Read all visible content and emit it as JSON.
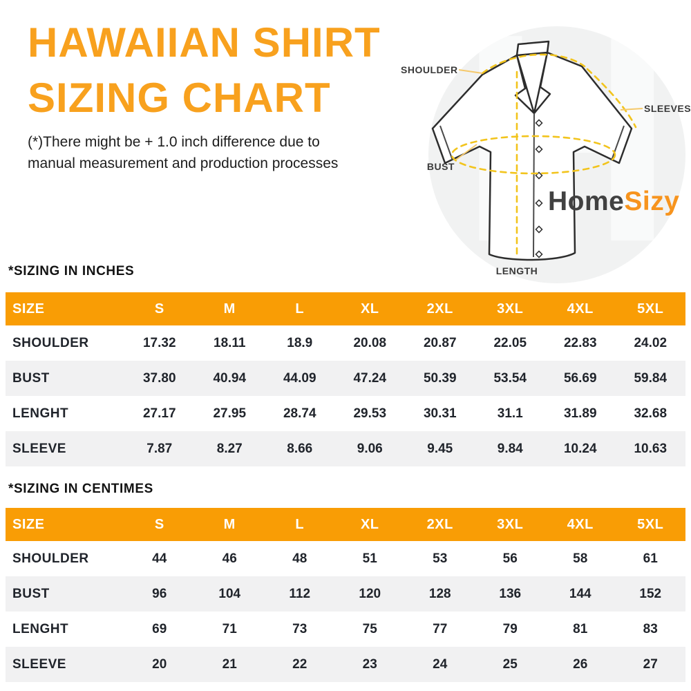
{
  "header": {
    "title_line1": "HAWAIIAN SHIRT",
    "title_line2": "SIZING CHART",
    "subtitle_line1": "(*)There might be + 1.0 inch difference due to",
    "subtitle_line2": "manual measurement and production processes"
  },
  "diagram": {
    "labels": {
      "shoulder": "SHOULDER",
      "sleeves": "SLEEVES",
      "bust": "BUST",
      "length": "LENGTH"
    },
    "logo": {
      "part1": "Home",
      "part2": "Sizy"
    },
    "watermark_letter": "H"
  },
  "colors": {
    "title_orange": "#F8A11E",
    "accent_orange": "#F99D05",
    "logo_orange": "#F7941E",
    "logo_dark": "#414141",
    "dash_yellow": "#F2C41D",
    "connector_yellow": "#F5C96B",
    "row_alt_gray": "#F1F1F2",
    "table_text": "#20242B",
    "shirt_outline": "#2D2D2D"
  },
  "tables": [
    {
      "heading": "*SIZING IN INCHES",
      "columns": [
        "SIZE",
        "S",
        "M",
        "L",
        "XL",
        "2XL",
        "3XL",
        "4XL",
        "5XL"
      ],
      "rows": [
        {
          "label": "SHOULDER",
          "values": [
            "17.32",
            "18.11",
            "18.9",
            "20.08",
            "20.87",
            "22.05",
            "22.83",
            "24.02"
          ]
        },
        {
          "label": "BUST",
          "values": [
            "37.80",
            "40.94",
            "44.09",
            "47.24",
            "50.39",
            "53.54",
            "56.69",
            "59.84"
          ]
        },
        {
          "label": "LENGHT",
          "values": [
            "27.17",
            "27.95",
            "28.74",
            "29.53",
            "30.31",
            "31.1",
            "31.89",
            "32.68"
          ]
        },
        {
          "label": "SLEEVE",
          "values": [
            "7.87",
            "8.27",
            "8.66",
            "9.06",
            "9.45",
            "9.84",
            "10.24",
            "10.63"
          ]
        }
      ]
    },
    {
      "heading": "*SIZING IN CENTIMES",
      "columns": [
        "SIZE",
        "S",
        "M",
        "L",
        "XL",
        "2XL",
        "3XL",
        "4XL",
        "5XL"
      ],
      "rows": [
        {
          "label": "SHOULDER",
          "values": [
            "44",
            "46",
            "48",
            "51",
            "53",
            "56",
            "58",
            "61"
          ]
        },
        {
          "label": "BUST",
          "values": [
            "96",
            "104",
            "112",
            "120",
            "128",
            "136",
            "144",
            "152"
          ]
        },
        {
          "label": "LENGHT",
          "values": [
            "69",
            "71",
            "73",
            "75",
            "77",
            "79",
            "81",
            "83"
          ]
        },
        {
          "label": "SLEEVE",
          "values": [
            "20",
            "21",
            "22",
            "23",
            "24",
            "25",
            "26",
            "27"
          ]
        }
      ]
    }
  ],
  "chart_data": [
    {
      "type": "table",
      "title": "*SIZING IN INCHES",
      "columns": [
        "SIZE",
        "S",
        "M",
        "L",
        "XL",
        "2XL",
        "3XL",
        "4XL",
        "5XL"
      ],
      "series": [
        {
          "name": "SHOULDER",
          "values": [
            17.32,
            18.11,
            18.9,
            20.08,
            20.87,
            22.05,
            22.83,
            24.02
          ]
        },
        {
          "name": "BUST",
          "values": [
            37.8,
            40.94,
            44.09,
            47.24,
            50.39,
            53.54,
            56.69,
            59.84
          ]
        },
        {
          "name": "LENGHT",
          "values": [
            27.17,
            27.95,
            28.74,
            29.53,
            30.31,
            31.1,
            31.89,
            32.68
          ]
        },
        {
          "name": "SLEEVE",
          "values": [
            7.87,
            8.27,
            8.66,
            9.06,
            9.45,
            9.84,
            10.24,
            10.63
          ]
        }
      ]
    },
    {
      "type": "table",
      "title": "*SIZING IN CENTIMES",
      "columns": [
        "SIZE",
        "S",
        "M",
        "L",
        "XL",
        "2XL",
        "3XL",
        "4XL",
        "5XL"
      ],
      "series": [
        {
          "name": "SHOULDER",
          "values": [
            44,
            46,
            48,
            51,
            53,
            56,
            58,
            61
          ]
        },
        {
          "name": "BUST",
          "values": [
            96,
            104,
            112,
            120,
            128,
            136,
            144,
            152
          ]
        },
        {
          "name": "LENGHT",
          "values": [
            69,
            71,
            73,
            75,
            77,
            79,
            81,
            83
          ]
        },
        {
          "name": "SLEEVE",
          "values": [
            20,
            21,
            22,
            23,
            24,
            25,
            26,
            27
          ]
        }
      ]
    }
  ]
}
